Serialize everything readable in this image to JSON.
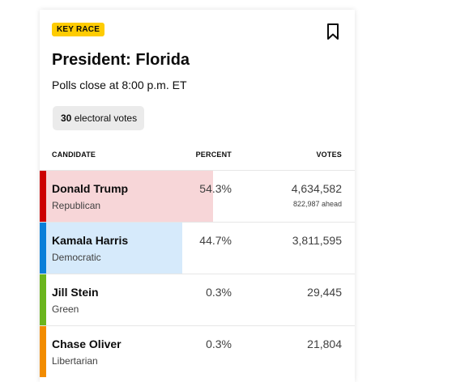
{
  "race": {
    "badge": "KEY RACE",
    "title": "President: Florida",
    "polls_close": "Polls close at 8:00 p.m. ET",
    "electoral_votes_count": "30",
    "electoral_votes_label": "electoral votes"
  },
  "table": {
    "headers": {
      "candidate": "CANDIDATE",
      "percent": "PERCENT",
      "votes": "VOTES"
    },
    "rows": [
      {
        "name": "Donald Trump",
        "party": "Republican",
        "percent": "54.3%",
        "percent_value": 54.3,
        "votes": "4,634,582",
        "ahead": "822,987 ahead",
        "stripe_color": "#cc0000",
        "bar_color": "#f7d6d8",
        "bar_scale": 0.54
      },
      {
        "name": "Kamala Harris",
        "party": "Democratic",
        "percent": "44.7%",
        "percent_value": 44.7,
        "votes": "3,811,595",
        "ahead": "",
        "stripe_color": "#0a7fd9",
        "bar_color": "#d6eafb",
        "bar_scale": 0.44
      },
      {
        "name": "Jill Stein",
        "party": "Green",
        "percent": "0.3%",
        "percent_value": 0.3,
        "votes": "29,445",
        "ahead": "",
        "stripe_color": "#6bb51e",
        "bar_color": "#e9f5dc",
        "bar_scale": 0
      },
      {
        "name": "Chase Oliver",
        "party": "Libertarian",
        "percent": "0.3%",
        "percent_value": 0.3,
        "votes": "21,804",
        "ahead": "",
        "stripe_color": "#f28c00",
        "bar_color": "#fde9cc",
        "bar_scale": 0
      }
    ]
  },
  "icons": {
    "bookmark": "bookmark-icon"
  },
  "colors": {
    "badge": "#fecc02",
    "pill": "#ebebeb"
  }
}
